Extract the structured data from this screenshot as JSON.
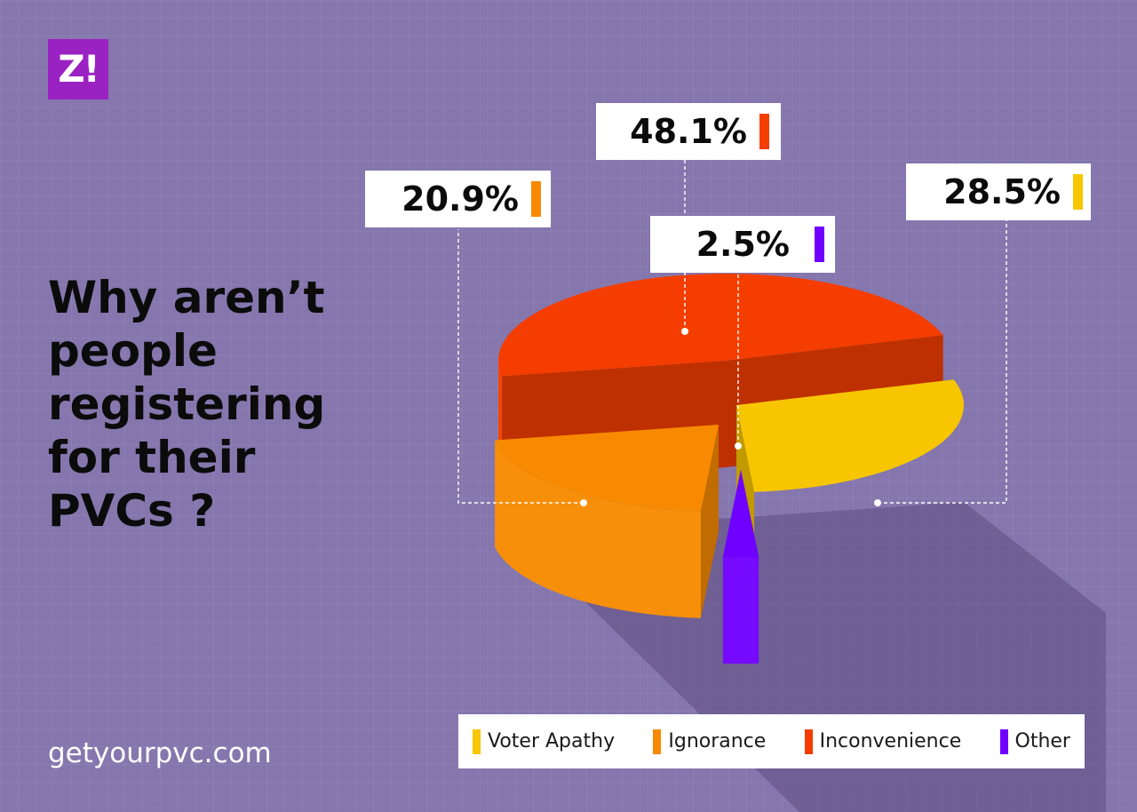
{
  "brand": {
    "logo_text": "Z!",
    "logo_color": "#9b22c2"
  },
  "title_lines": [
    "Why aren’t",
    "people",
    "registering",
    "for their",
    "PVCs ?"
  ],
  "footer_url": "getyourpvc.com",
  "colors": {
    "background": "#8577ad",
    "voter_apathy": "#f7c600",
    "ignorance": "#f78a00",
    "inconvenience": "#f53d00",
    "other": "#7000ff"
  },
  "chart_data": {
    "type": "pie",
    "style": "3d-exploded",
    "categories": [
      "Voter Apathy",
      "Ignorance",
      "Inconvenience",
      "Other"
    ],
    "values": [
      28.5,
      20.9,
      48.1,
      2.5
    ],
    "value_labels": [
      "28.5%",
      "20.9%",
      "48.1%",
      "2.5%"
    ],
    "colors": [
      "#f7c600",
      "#f78a00",
      "#f53d00",
      "#7000ff"
    ],
    "legend_position": "bottom-right"
  }
}
